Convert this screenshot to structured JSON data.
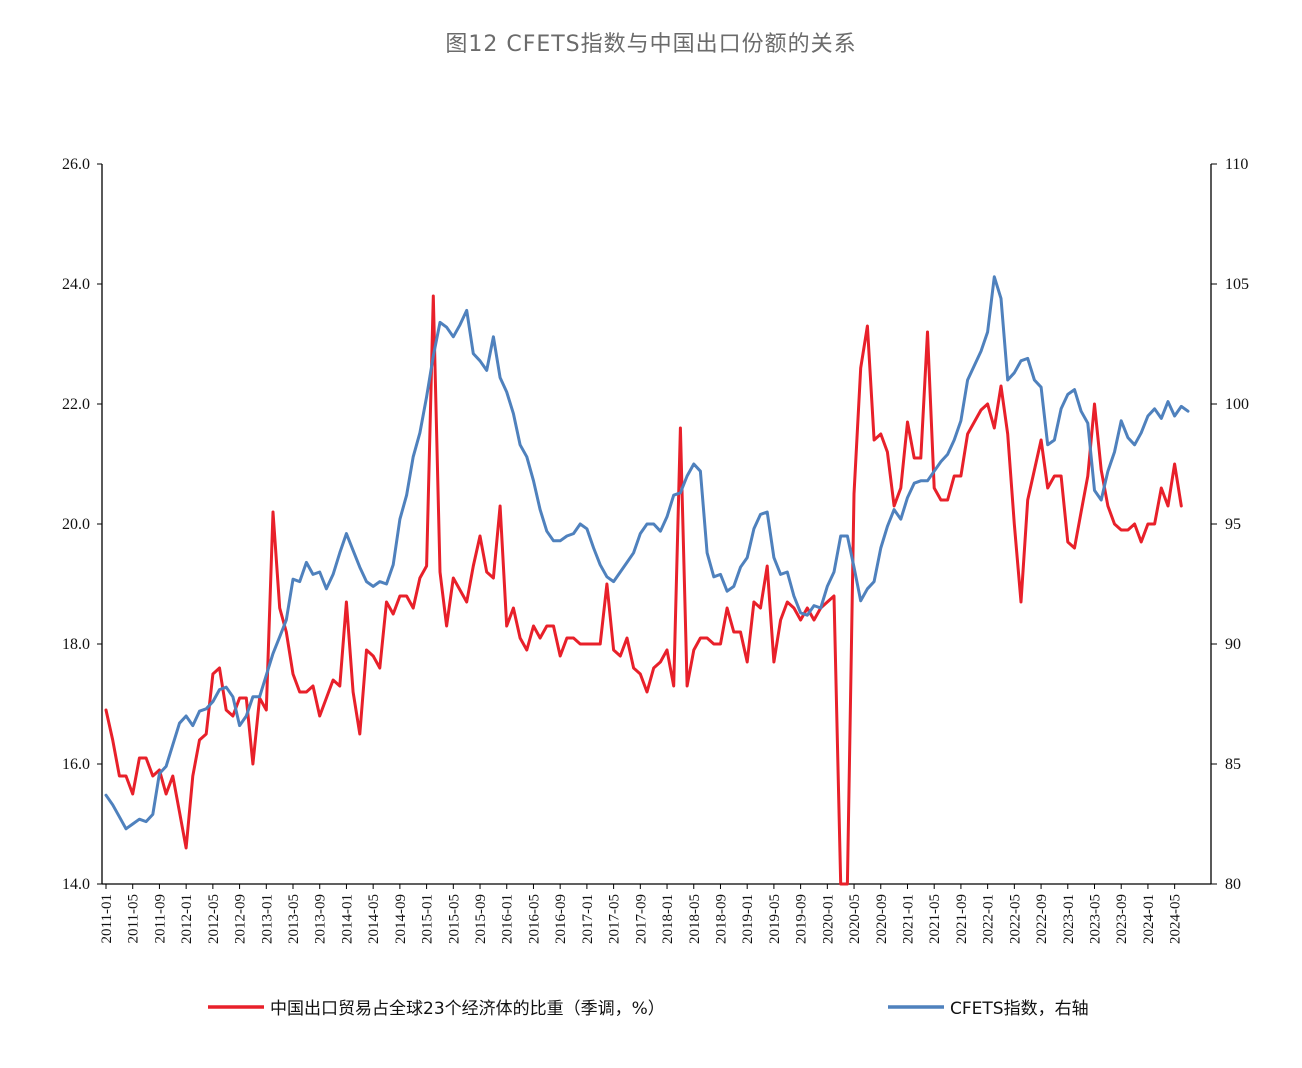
{
  "title": "图12 CFETS指数与中国出口份额的关系",
  "chart_data": {
    "type": "line",
    "title": "图12 CFETS指数与中国出口份额的关系",
    "x_tick_labels": [
      "2011-01",
      "2011-05",
      "2011-09",
      "2012-01",
      "2012-05",
      "2012-09",
      "2013-01",
      "2013-05",
      "2013-09",
      "2014-01",
      "2014-05",
      "2014-09",
      "2015-01",
      "2015-05",
      "2015-09",
      "2016-01",
      "2016-05",
      "2016-09",
      "2017-01",
      "2017-05",
      "2017-09",
      "2018-01",
      "2018-05",
      "2018-09",
      "2019-01",
      "2019-05",
      "2019-09",
      "2020-01",
      "2020-05",
      "2020-09",
      "2021-01",
      "2021-05",
      "2021-09",
      "2022-01",
      "2022-05",
      "2022-09",
      "2023-01",
      "2023-05",
      "2023-09",
      "2024-01",
      "2024-05"
    ],
    "y_left": {
      "min": 14,
      "max": 26,
      "ticks": [
        "14.0",
        "16.0",
        "18.0",
        "20.0",
        "22.0",
        "24.0",
        "26.0"
      ]
    },
    "y_right": {
      "min": 80,
      "max": 110,
      "ticks": [
        "80",
        "85",
        "90",
        "95",
        "100",
        "105",
        "110"
      ]
    },
    "legend_position": "bottom",
    "series": [
      {
        "name": "中国出口贸易占全球23个经济体的比重（季调，%）",
        "axis": "left",
        "color": "#e8202a",
        "start": "2011-01",
        "values": [
          16.9,
          16.4,
          15.8,
          15.8,
          15.5,
          16.1,
          16.1,
          15.8,
          15.9,
          15.5,
          15.8,
          15.2,
          14.6,
          15.8,
          16.4,
          16.5,
          17.5,
          17.6,
          16.9,
          16.8,
          17.1,
          17.1,
          16.0,
          17.1,
          16.9,
          20.2,
          18.6,
          18.2,
          17.5,
          17.2,
          17.2,
          17.3,
          16.8,
          17.1,
          17.4,
          17.3,
          18.7,
          17.2,
          16.5,
          17.9,
          17.8,
          17.6,
          18.7,
          18.5,
          18.8,
          18.8,
          18.6,
          19.1,
          19.3,
          23.8,
          19.2,
          18.3,
          19.1,
          18.9,
          18.7,
          19.3,
          19.8,
          19.2,
          19.1,
          20.3,
          18.3,
          18.6,
          18.1,
          17.9,
          18.3,
          18.1,
          18.3,
          18.3,
          17.8,
          18.1,
          18.1,
          18.0,
          18.0,
          18.0,
          18.0,
          19.0,
          17.9,
          17.8,
          18.1,
          17.6,
          17.5,
          17.2,
          17.6,
          17.7,
          17.9,
          17.3,
          21.6,
          17.3,
          17.9,
          18.1,
          18.1,
          18.0,
          18.0,
          18.6,
          18.2,
          18.2,
          17.7,
          18.7,
          18.6,
          19.3,
          17.7,
          18.4,
          18.7,
          18.6,
          18.4,
          18.6,
          18.4,
          18.6,
          18.7,
          18.8,
          14.0,
          14.0,
          20.5,
          22.6,
          23.3,
          21.4,
          21.5,
          21.2,
          20.3,
          20.6,
          21.7,
          21.1,
          21.1,
          23.2,
          20.6,
          20.4,
          20.4,
          20.8,
          20.8,
          21.5,
          21.7,
          21.9,
          22.0,
          21.6,
          22.3,
          21.5,
          20.0,
          18.7,
          20.4,
          20.9,
          21.4,
          20.6,
          20.8,
          20.8,
          19.7,
          19.6,
          20.2,
          20.8,
          22.0,
          20.9,
          20.3,
          20.0,
          19.9,
          19.9,
          20.0,
          19.7,
          20.0,
          20.0,
          20.6,
          20.3,
          21.0,
          20.3
        ]
      },
      {
        "name": "CFETS指数，右轴",
        "axis": "right",
        "color": "#4f81bd",
        "start": "2011-01",
        "values": [
          83.7,
          83.3,
          82.8,
          82.3,
          82.5,
          82.7,
          82.6,
          82.9,
          84.6,
          84.9,
          85.8,
          86.7,
          87.0,
          86.6,
          87.2,
          87.3,
          87.6,
          88.1,
          88.2,
          87.8,
          86.6,
          87.0,
          87.8,
          87.8,
          88.7,
          89.6,
          90.3,
          91.0,
          92.7,
          92.6,
          93.4,
          92.9,
          93.0,
          92.3,
          92.9,
          93.8,
          94.6,
          93.9,
          93.2,
          92.6,
          92.4,
          92.6,
          92.5,
          93.3,
          95.2,
          96.2,
          97.8,
          98.8,
          100.3,
          102.0,
          103.4,
          103.2,
          102.8,
          103.3,
          103.9,
          102.1,
          101.8,
          101.4,
          102.8,
          101.1,
          100.5,
          99.6,
          98.3,
          97.8,
          96.8,
          95.6,
          94.7,
          94.3,
          94.3,
          94.5,
          94.6,
          95.0,
          94.8,
          94.0,
          93.3,
          92.8,
          92.6,
          93.0,
          93.4,
          93.8,
          94.6,
          95.0,
          95.0,
          94.7,
          95.3,
          96.2,
          96.3,
          97.0,
          97.5,
          97.2,
          93.8,
          92.8,
          92.9,
          92.2,
          92.4,
          93.2,
          93.6,
          94.8,
          95.4,
          95.5,
          93.6,
          92.9,
          93.0,
          92.0,
          91.3,
          91.2,
          91.6,
          91.5,
          92.4,
          93.0,
          94.5,
          94.5,
          93.2,
          91.8,
          92.3,
          92.6,
          94.0,
          94.9,
          95.6,
          95.2,
          96.1,
          96.7,
          96.8,
          96.8,
          97.2,
          97.6,
          97.9,
          98.5,
          99.3,
          101.0,
          101.6,
          102.2,
          103.0,
          105.3,
          104.4,
          101.0,
          101.3,
          101.8,
          101.9,
          101.0,
          100.7,
          98.3,
          98.5,
          99.8,
          100.4,
          100.6,
          99.7,
          99.2,
          96.4,
          96.0,
          97.2,
          98.0,
          99.3,
          98.6,
          98.3,
          98.8,
          99.5,
          99.8,
          99.4,
          100.1,
          99.5,
          99.9,
          99.7
        ]
      }
    ]
  }
}
